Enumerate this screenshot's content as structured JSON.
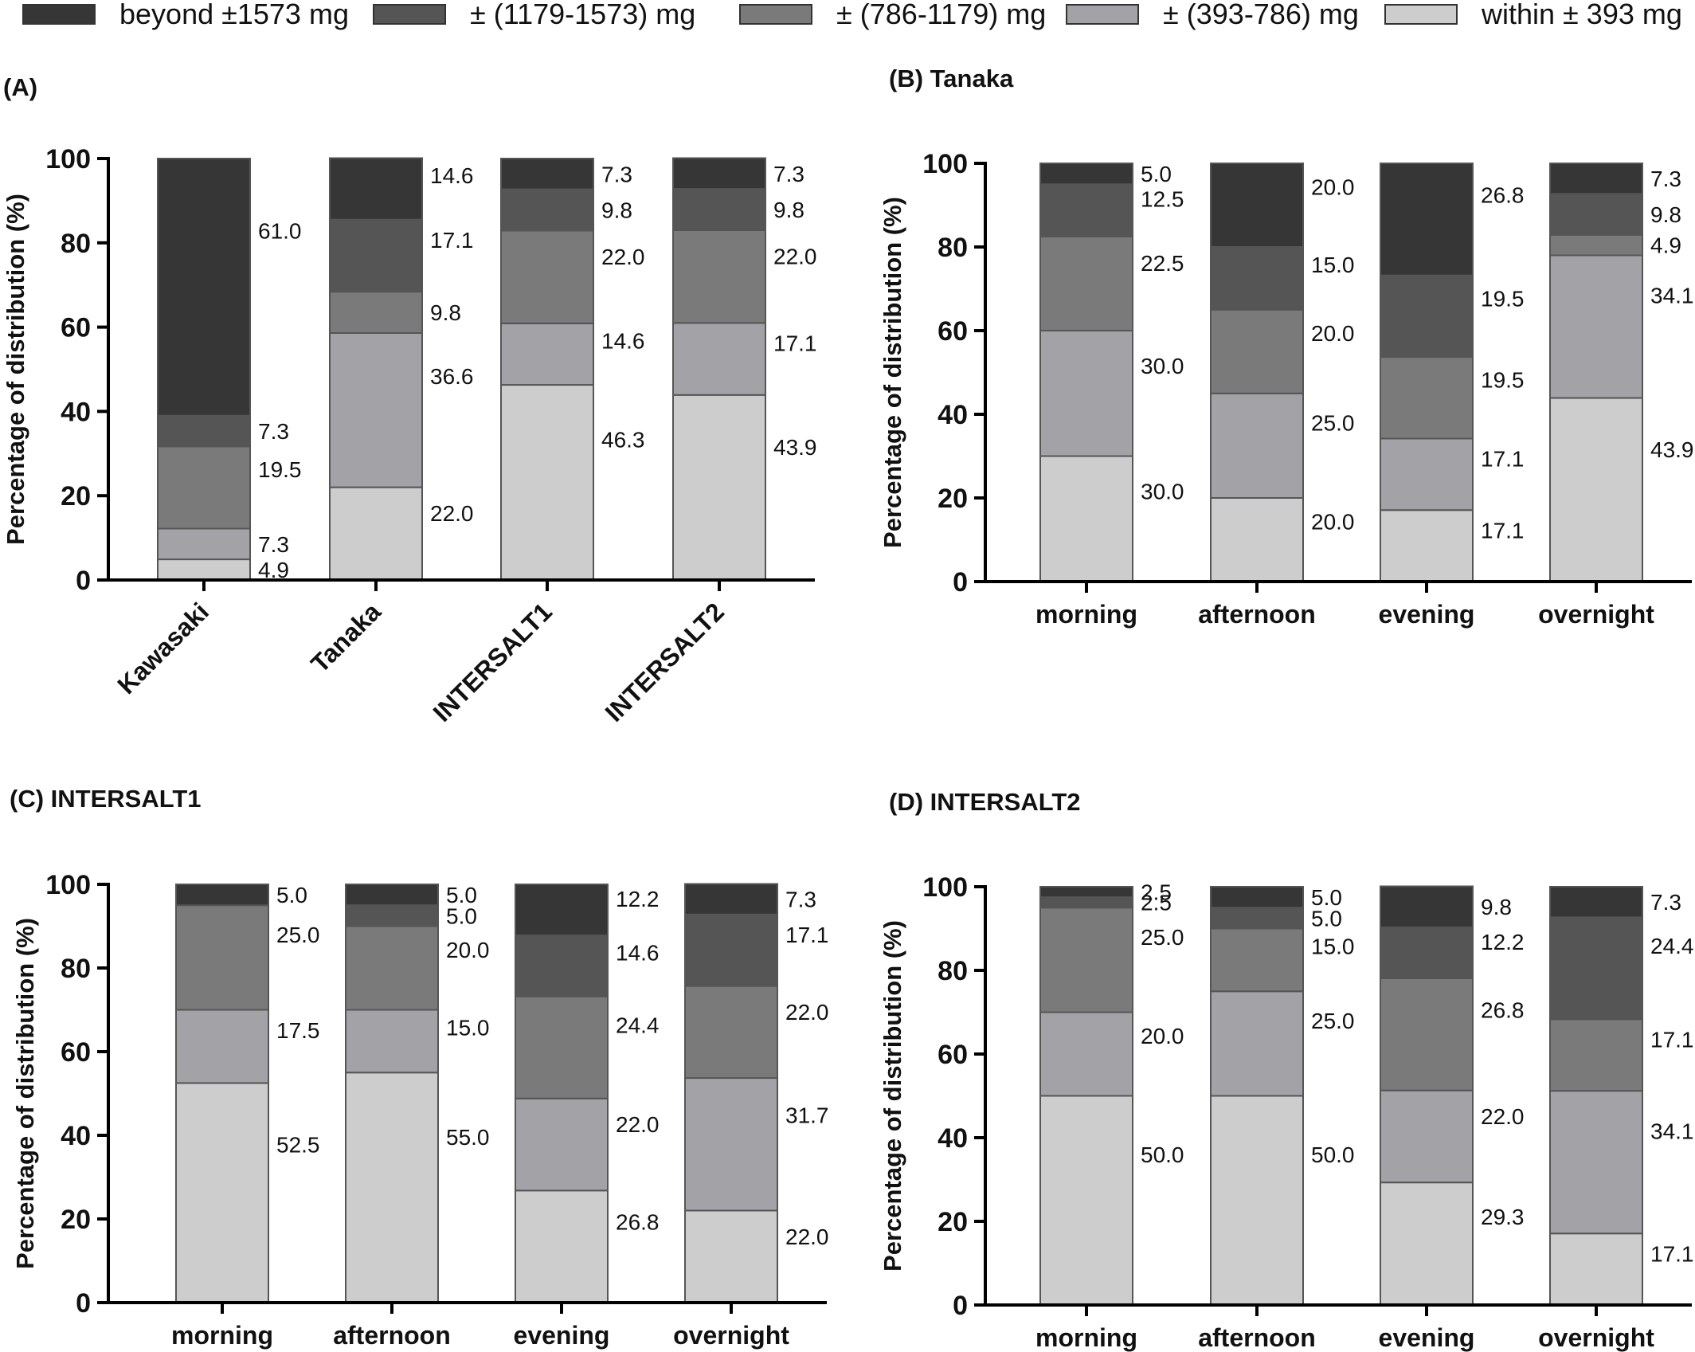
{
  "legend": {
    "items": [
      {
        "label": "beyond ±1573 mg",
        "color": "#363636"
      },
      {
        "label": "± (1179-1573) mg",
        "color": "#555555"
      },
      {
        "label": "± (786-1179) mg",
        "color": "#7a7a7a"
      },
      {
        "label": "± (393-786) mg",
        "color": "#a3a3a7"
      },
      {
        "label": "within ± 393 mg",
        "color": "#cdcdcd"
      }
    ]
  },
  "chart_data": [
    {
      "type": "bar",
      "stacked": true,
      "panel": "(A)",
      "ylabel": "Percentage of distribution (%)",
      "ylim": [
        0,
        100
      ],
      "yticks": [
        "0",
        "20",
        "40",
        "60",
        "80",
        "100"
      ],
      "categories": [
        "Kawasaki",
        "Tanaka",
        "INTERSALT1",
        "INTERSALT2"
      ],
      "category_rotated": true,
      "series": [
        {
          "name": "within ± 393 mg",
          "values": [
            4.9,
            22.0,
            46.3,
            43.9
          ]
        },
        {
          "name": "± (393-786) mg",
          "values": [
            7.3,
            36.6,
            14.6,
            17.1
          ]
        },
        {
          "name": "± (786-1179) mg",
          "values": [
            19.5,
            9.8,
            22.0,
            22.0
          ]
        },
        {
          "name": "± (1179-1573) mg",
          "values": [
            7.3,
            17.1,
            9.8,
            9.8
          ]
        },
        {
          "name": "beyond ±1573 mg",
          "values": [
            61.0,
            14.6,
            7.3,
            7.3
          ]
        }
      ],
      "labels": [
        [
          "4.9",
          "7.3",
          "19.5",
          "7.3",
          "61.0"
        ],
        [
          "22.0",
          "36.6",
          "9.8",
          "17.1",
          "14.6"
        ],
        [
          "46.3",
          "14.6",
          "22.0",
          "9.8",
          "7.3"
        ],
        [
          "43.9",
          "17.1",
          "22.0",
          "9.8",
          "7.3"
        ]
      ]
    },
    {
      "type": "bar",
      "stacked": true,
      "panel": "(B) Tanaka",
      "ylabel": "Percentage of distribution (%)",
      "ylim": [
        0,
        100
      ],
      "yticks": [
        "0",
        "20",
        "40",
        "60",
        "80",
        "100"
      ],
      "categories": [
        "morning",
        "afternoon",
        "evening",
        "overnight"
      ],
      "series": [
        {
          "name": "within ± 393 mg",
          "values": [
            30.0,
            20.0,
            17.1,
            43.9
          ]
        },
        {
          "name": "± (393-786) mg",
          "values": [
            30.0,
            25.0,
            17.1,
            34.1
          ]
        },
        {
          "name": "± (786-1179) mg",
          "values": [
            22.5,
            20.0,
            19.5,
            4.9
          ]
        },
        {
          "name": "± (1179-1573) mg",
          "values": [
            12.5,
            15.0,
            19.5,
            9.8
          ]
        },
        {
          "name": "beyond ±1573 mg",
          "values": [
            5.0,
            20.0,
            26.8,
            7.3
          ]
        }
      ],
      "labels": [
        [
          "30.0",
          "30.0",
          "22.5",
          "12.5",
          "5.0"
        ],
        [
          "20.0",
          "25.0",
          "20.0",
          "15.0",
          "20.0"
        ],
        [
          "17.1",
          "17.1",
          "19.5",
          "19.5",
          "26.8"
        ],
        [
          "43.9",
          "34.1",
          "4.9",
          "9.8",
          "7.3"
        ]
      ]
    },
    {
      "type": "bar",
      "stacked": true,
      "panel": "(C) INTERSALT1",
      "ylabel": "Percentage of distribution (%)",
      "ylim": [
        0,
        100
      ],
      "yticks": [
        "0",
        "20",
        "40",
        "60",
        "80",
        "100"
      ],
      "categories": [
        "morning",
        "afternoon",
        "evening",
        "overnight"
      ],
      "series": [
        {
          "name": "within ± 393 mg",
          "values": [
            52.5,
            55.0,
            26.8,
            22.0
          ]
        },
        {
          "name": "± (393-786) mg",
          "values": [
            17.5,
            15.0,
            22.0,
            31.7
          ]
        },
        {
          "name": "± (786-1179) mg",
          "values": [
            25.0,
            20.0,
            24.4,
            22.0
          ]
        },
        {
          "name": "± (1179-1573) mg",
          "values": [
            0,
            5.0,
            14.6,
            17.1
          ]
        },
        {
          "name": "beyond ±1573 mg",
          "values": [
            5.0,
            5.0,
            12.2,
            7.3
          ]
        }
      ],
      "labels": [
        [
          "52.5",
          "17.5",
          "25.0",
          "",
          "5.0"
        ],
        [
          "55.0",
          "15.0",
          "20.0",
          "5.0",
          "5.0"
        ],
        [
          "26.8",
          "22.0",
          "24.4",
          "14.6",
          "12.2"
        ],
        [
          "22.0",
          "31.7",
          "22.0",
          "17.1",
          "7.3"
        ]
      ]
    },
    {
      "type": "bar",
      "stacked": true,
      "panel": "(D) INTERSALT2",
      "ylabel": "Percentage of distribution (%)",
      "ylim": [
        0,
        100
      ],
      "yticks": [
        "0",
        "20",
        "40",
        "60",
        "80",
        "100"
      ],
      "categories": [
        "morning",
        "afternoon",
        "evening",
        "overnight"
      ],
      "series": [
        {
          "name": "within ± 393 mg",
          "values": [
            50.0,
            50.0,
            29.3,
            17.1
          ]
        },
        {
          "name": "± (393-786) mg",
          "values": [
            20.0,
            25.0,
            22.0,
            34.1
          ]
        },
        {
          "name": "± (786-1179) mg",
          "values": [
            25.0,
            15.0,
            26.8,
            17.1
          ]
        },
        {
          "name": "± (1179-1573) mg",
          "values": [
            2.5,
            5.0,
            12.2,
            24.4
          ]
        },
        {
          "name": "beyond ±1573 mg",
          "values": [
            2.5,
            5.0,
            9.8,
            7.3
          ]
        }
      ],
      "labels": [
        [
          "50.0",
          "20.0",
          "25.0",
          "2.5",
          "2.5"
        ],
        [
          "50.0",
          "25.0",
          "15.0",
          "5.0",
          "5.0"
        ],
        [
          "29.3",
          "22.0",
          "26.8",
          "12.2",
          "9.8"
        ],
        [
          "17.1",
          "34.1",
          "17.1",
          "24.4",
          "7.3"
        ]
      ]
    }
  ]
}
